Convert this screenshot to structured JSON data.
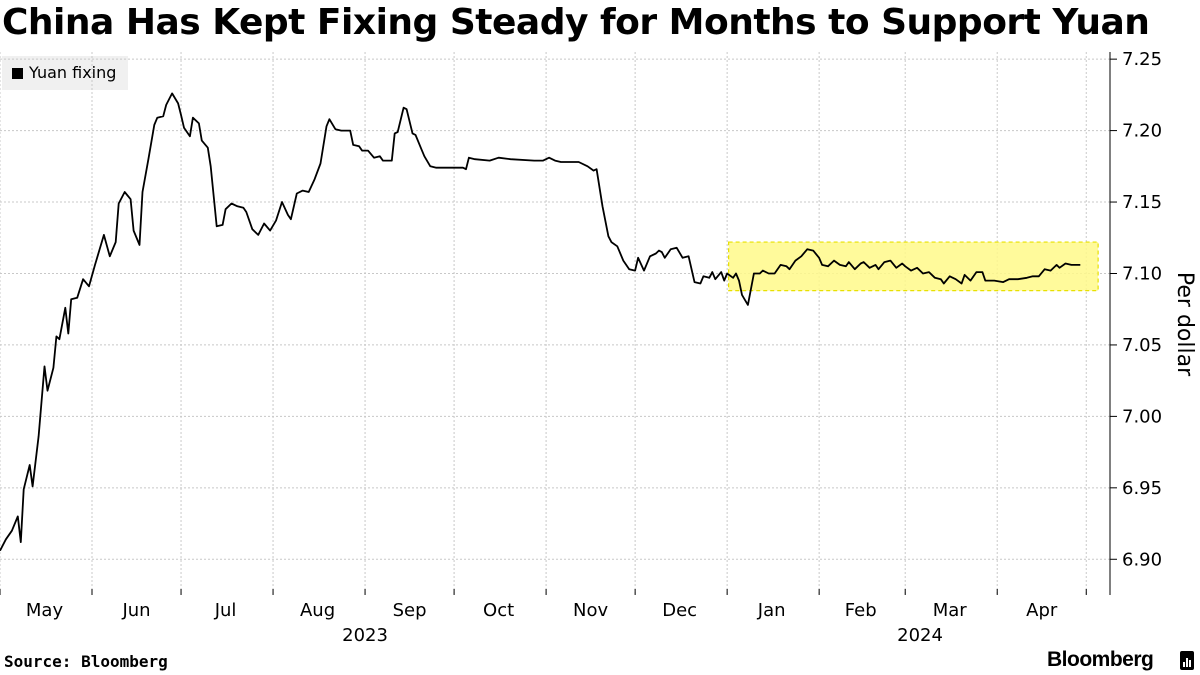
{
  "chart_data": {
    "type": "line",
    "title": "China Has Kept Fixing Steady for Months to Support Yuan",
    "ylabel": "Per dollar",
    "xlabel": "",
    "ylim": [
      6.875,
      7.255
    ],
    "yticks": [
      6.9,
      6.95,
      7.0,
      7.05,
      7.1,
      7.15,
      7.2,
      7.25
    ],
    "ytick_labels": [
      "6.90",
      "6.95",
      "7.00",
      "7.05",
      "7.10",
      "7.15",
      "7.20",
      "7.25"
    ],
    "x_unit": "days since 2023-05-01",
    "xlim": [
      0,
      374
    ],
    "month_boundaries": [
      0,
      31,
      61,
      92,
      123,
      153,
      184,
      214,
      245,
      276,
      305,
      336,
      366
    ],
    "month_labels": [
      {
        "label": "May",
        "x": 15
      },
      {
        "label": "Jun",
        "x": 46
      },
      {
        "label": "Jul",
        "x": 76
      },
      {
        "label": "Aug",
        "x": 107
      },
      {
        "label": "Sep",
        "x": 138
      },
      {
        "label": "Oct",
        "x": 168
      },
      {
        "label": "Nov",
        "x": 199
      },
      {
        "label": "Dec",
        "x": 229
      },
      {
        "label": "Jan",
        "x": 260
      },
      {
        "label": "Feb",
        "x": 290
      },
      {
        "label": "Mar",
        "x": 320
      },
      {
        "label": "Apr",
        "x": 351
      }
    ],
    "year_labels": [
      {
        "label": "2023",
        "x": 123
      },
      {
        "label": "2024",
        "x": 310
      }
    ],
    "legend": [
      {
        "name": "Yuan fixing",
        "color": "#000000"
      }
    ],
    "highlight": {
      "x_range": [
        245.5,
        370
      ],
      "y_range": [
        7.088,
        7.122
      ],
      "color": "#fff98a",
      "border": "#e8e000"
    },
    "series": [
      {
        "name": "Yuan fixing",
        "color": "#000000",
        "points": [
          [
            0,
            6.906
          ],
          [
            2,
            6.914
          ],
          [
            4,
            6.92
          ],
          [
            6,
            6.93
          ],
          [
            7,
            6.912
          ],
          [
            8,
            6.949
          ],
          [
            10,
            6.966
          ],
          [
            11,
            6.951
          ],
          [
            13,
            6.986
          ],
          [
            15,
            7.035
          ],
          [
            16,
            7.018
          ],
          [
            18,
            7.034
          ],
          [
            19,
            7.056
          ],
          [
            20,
            7.054
          ],
          [
            22,
            7.076
          ],
          [
            23,
            7.058
          ],
          [
            24,
            7.082
          ],
          [
            26,
            7.083
          ],
          [
            28,
            7.096
          ],
          [
            30,
            7.091
          ],
          [
            32,
            7.106
          ],
          [
            35,
            7.127
          ],
          [
            37,
            7.112
          ],
          [
            39,
            7.122
          ],
          [
            40,
            7.149
          ],
          [
            42,
            7.157
          ],
          [
            44,
            7.152
          ],
          [
            45,
            7.13
          ],
          [
            47,
            7.12
          ],
          [
            48,
            7.157
          ],
          [
            50,
            7.18
          ],
          [
            52,
            7.204
          ],
          [
            53,
            7.209
          ],
          [
            55,
            7.21
          ],
          [
            56,
            7.218
          ],
          [
            58,
            7.226
          ],
          [
            60,
            7.219
          ],
          [
            61,
            7.211
          ],
          [
            62,
            7.202
          ],
          [
            64,
            7.196
          ],
          [
            65,
            7.209
          ],
          [
            67,
            7.205
          ],
          [
            68,
            7.193
          ],
          [
            70,
            7.188
          ],
          [
            71,
            7.175
          ],
          [
            73,
            7.133
          ],
          [
            75,
            7.134
          ],
          [
            76,
            7.145
          ],
          [
            78,
            7.149
          ],
          [
            80,
            7.147
          ],
          [
            82,
            7.146
          ],
          [
            83,
            7.143
          ],
          [
            85,
            7.131
          ],
          [
            87,
            7.127
          ],
          [
            89,
            7.135
          ],
          [
            91,
            7.13
          ],
          [
            93,
            7.137
          ],
          [
            95,
            7.15
          ],
          [
            97,
            7.141
          ],
          [
            98,
            7.138
          ],
          [
            100,
            7.156
          ],
          [
            102,
            7.158
          ],
          [
            104,
            7.157
          ],
          [
            106,
            7.166
          ],
          [
            108,
            7.177
          ],
          [
            110,
            7.203
          ],
          [
            111,
            7.208
          ],
          [
            113,
            7.201
          ],
          [
            115,
            7.2
          ],
          [
            118,
            7.2
          ],
          [
            119,
            7.19
          ],
          [
            121,
            7.189
          ],
          [
            122,
            7.186
          ],
          [
            124,
            7.186
          ],
          [
            126,
            7.181
          ],
          [
            128,
            7.182
          ],
          [
            129,
            7.179
          ],
          [
            132,
            7.179
          ],
          [
            133,
            7.198
          ],
          [
            134,
            7.199
          ],
          [
            136,
            7.216
          ],
          [
            137,
            7.215
          ],
          [
            139,
            7.198
          ],
          [
            140,
            7.197
          ],
          [
            142,
            7.187
          ],
          [
            143,
            7.182
          ],
          [
            145,
            7.175
          ],
          [
            147,
            7.174
          ],
          [
            153,
            7.174
          ],
          [
            156,
            7.174
          ],
          [
            157,
            7.173
          ],
          [
            158,
            7.181
          ],
          [
            160,
            7.18
          ],
          [
            165,
            7.179
          ],
          [
            168,
            7.181
          ],
          [
            172,
            7.18
          ],
          [
            180,
            7.179
          ],
          [
            183,
            7.179
          ],
          [
            185,
            7.181
          ],
          [
            187,
            7.179
          ],
          [
            189,
            7.178
          ],
          [
            195,
            7.178
          ],
          [
            198,
            7.175
          ],
          [
            200,
            7.172
          ],
          [
            201,
            7.173
          ],
          [
            203,
            7.147
          ],
          [
            205,
            7.126
          ],
          [
            206,
            7.122
          ],
          [
            208,
            7.119
          ],
          [
            210,
            7.109
          ],
          [
            212,
            7.103
          ],
          [
            214,
            7.102
          ],
          [
            215,
            7.111
          ],
          [
            217,
            7.102
          ],
          [
            219,
            7.112
          ],
          [
            221,
            7.114
          ],
          [
            222,
            7.116
          ],
          [
            223,
            7.115
          ],
          [
            224,
            7.111
          ],
          [
            226,
            7.117
          ],
          [
            228,
            7.118
          ],
          [
            230,
            7.111
          ],
          [
            232,
            7.112
          ],
          [
            234,
            7.094
          ],
          [
            236,
            7.093
          ],
          [
            237,
            7.098
          ],
          [
            239,
            7.097
          ],
          [
            240,
            7.101
          ],
          [
            241,
            7.096
          ],
          [
            243,
            7.101
          ],
          [
            244,
            7.095
          ],
          [
            245,
            7.1
          ],
          [
            247,
            7.097
          ],
          [
            248,
            7.1
          ],
          [
            249,
            7.095
          ],
          [
            250,
            7.085
          ],
          [
            252,
            7.078
          ],
          [
            254,
            7.1
          ],
          [
            256,
            7.1
          ],
          [
            257,
            7.102
          ],
          [
            259,
            7.1
          ],
          [
            261,
            7.1
          ],
          [
            263,
            7.106
          ],
          [
            265,
            7.105
          ],
          [
            266,
            7.103
          ],
          [
            268,
            7.109
          ],
          [
            270,
            7.112
          ],
          [
            272,
            7.117
          ],
          [
            274,
            7.116
          ],
          [
            276,
            7.111
          ],
          [
            277,
            7.106
          ],
          [
            279,
            7.105
          ],
          [
            281,
            7.109
          ],
          [
            283,
            7.106
          ],
          [
            285,
            7.105
          ],
          [
            286,
            7.108
          ],
          [
            288,
            7.103
          ],
          [
            290,
            7.107
          ],
          [
            291,
            7.108
          ],
          [
            293,
            7.104
          ],
          [
            295,
            7.106
          ],
          [
            296,
            7.103
          ],
          [
            298,
            7.108
          ],
          [
            300,
            7.109
          ],
          [
            302,
            7.104
          ],
          [
            304,
            7.107
          ],
          [
            305,
            7.105
          ],
          [
            307,
            7.102
          ],
          [
            309,
            7.104
          ],
          [
            311,
            7.1
          ],
          [
            313,
            7.101
          ],
          [
            315,
            7.097
          ],
          [
            317,
            7.096
          ],
          [
            318,
            7.093
          ],
          [
            320,
            7.098
          ],
          [
            322,
            7.096
          ],
          [
            324,
            7.093
          ],
          [
            325,
            7.099
          ],
          [
            327,
            7.095
          ],
          [
            329,
            7.101
          ],
          [
            331,
            7.101
          ],
          [
            332,
            7.095
          ],
          [
            335,
            7.095
          ],
          [
            338,
            7.094
          ],
          [
            340,
            7.096
          ],
          [
            343,
            7.096
          ],
          [
            346,
            7.097
          ],
          [
            348,
            7.098
          ],
          [
            350,
            7.098
          ],
          [
            352,
            7.103
          ],
          [
            354,
            7.102
          ],
          [
            356,
            7.106
          ],
          [
            357,
            7.104
          ],
          [
            359,
            7.107
          ],
          [
            361,
            7.106
          ],
          [
            363,
            7.106
          ],
          [
            364,
            7.106
          ]
        ]
      }
    ]
  },
  "source_label": "Source: Bloomberg",
  "brand_label": "Bloomberg"
}
